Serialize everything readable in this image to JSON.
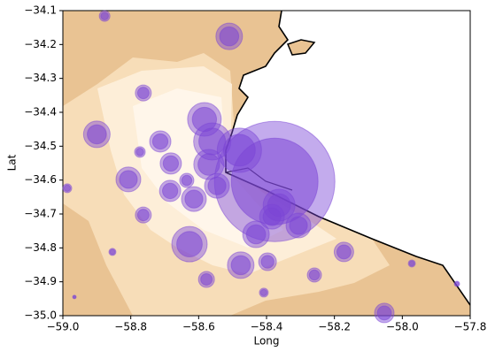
{
  "chart_data": {
    "type": "scatter",
    "x_label": "Long",
    "y_label": "Lat",
    "xlim": [
      -59.0,
      -57.8
    ],
    "ylim": [
      -35.0,
      -34.1
    ],
    "xticks": [
      {
        "value": -59.0,
        "label": "−59.0"
      },
      {
        "value": -58.8,
        "label": "−58.8"
      },
      {
        "value": -58.6,
        "label": "−58.6"
      },
      {
        "value": -58.4,
        "label": "−58.4"
      },
      {
        "value": -58.2,
        "label": "−58.2"
      },
      {
        "value": -58.0,
        "label": "−58.0"
      },
      {
        "value": -57.8,
        "label": "−57.8"
      }
    ],
    "yticks": [
      {
        "value": -35.0,
        "label": "−35.0"
      },
      {
        "value": -34.9,
        "label": "−34.9"
      },
      {
        "value": -34.8,
        "label": "−34.8"
      },
      {
        "value": -34.7,
        "label": "−34.7"
      },
      {
        "value": -34.6,
        "label": "−34.6"
      },
      {
        "value": -34.5,
        "label": "−34.5"
      },
      {
        "value": -34.4,
        "label": "−34.4"
      },
      {
        "value": -34.3,
        "label": "−34.3"
      },
      {
        "value": -34.2,
        "label": "−34.2"
      },
      {
        "value": -34.1,
        "label": "−34.1"
      }
    ],
    "color": "#7b45d6",
    "x": [
      -58.877,
      -58.51,
      -58.763,
      -58.9,
      -58.583,
      -58.713,
      -58.773,
      -58.56,
      -58.48,
      -58.682,
      -58.57,
      -58.376,
      -58.807,
      -58.635,
      -58.546,
      -58.684,
      -58.614,
      -58.987,
      -58.763,
      -58.363,
      -58.384,
      -58.306,
      -58.431,
      -58.627,
      -58.172,
      -58.854,
      -58.476,
      -58.397,
      -58.259,
      -58.577,
      -58.408,
      -58.966,
      -57.972,
      -57.839,
      -58.053
    ],
    "y": [
      -34.116,
      -34.176,
      -34.343,
      -34.465,
      -34.421,
      -34.486,
      -34.517,
      -34.486,
      -34.512,
      -34.551,
      -34.554,
      -34.604,
      -34.598,
      -34.601,
      -34.617,
      -34.632,
      -34.656,
      -34.624,
      -34.703,
      -34.674,
      -34.708,
      -34.734,
      -34.76,
      -34.789,
      -34.812,
      -34.812,
      -34.851,
      -34.841,
      -34.88,
      -34.893,
      -34.932,
      -34.945,
      -34.846,
      -34.906,
      -34.992
    ],
    "sizes": [
      6,
      15,
      9,
      15,
      19,
      12,
      6,
      21,
      25,
      12,
      17,
      68,
      14,
      8,
      14,
      12,
      14,
      5,
      9,
      18,
      14,
      14,
      15,
      20,
      11,
      4,
      15,
      10,
      8,
      9,
      5,
      2,
      4,
      3,
      11
    ]
  }
}
